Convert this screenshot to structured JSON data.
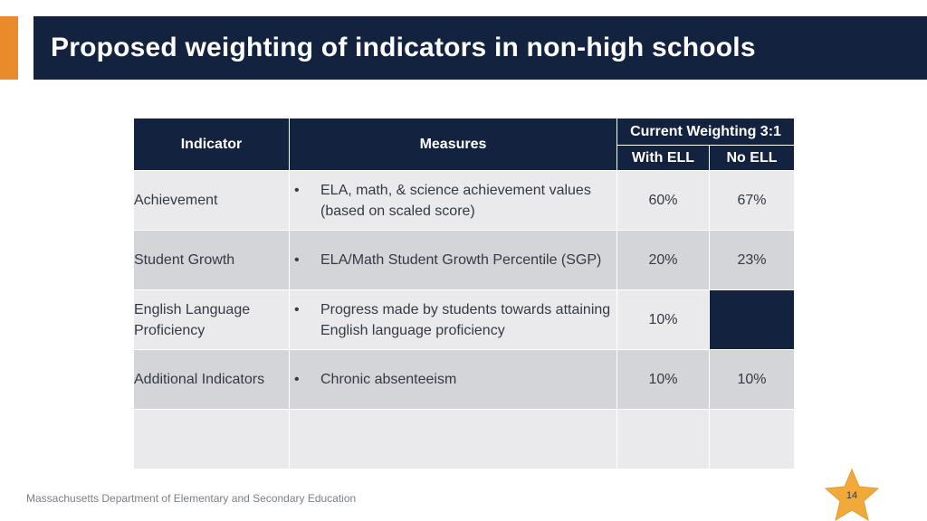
{
  "title": "Proposed weighting of indicators in non-high schools",
  "table": {
    "header": {
      "indicator": "Indicator",
      "measures": "Measures",
      "current_weighting": "Current Weighting 3:1",
      "with_ell": "With ELL",
      "no_ell": "No ELL"
    },
    "rows": [
      {
        "indicator": "Achievement",
        "bullet": "•",
        "measure": "ELA, math, & science achievement values (based on scaled score)",
        "with_ell": "60%",
        "no_ell": "67%"
      },
      {
        "indicator": "Student Growth",
        "bullet": "•",
        "measure": "ELA/Math Student Growth Percentile (SGP)",
        "with_ell": "20%",
        "no_ell": "23%"
      },
      {
        "indicator": "English Language Proficiency",
        "bullet": "•",
        "measure": "Progress made by students towards attaining English language proficiency",
        "with_ell": "10%",
        "no_ell": ""
      },
      {
        "indicator": "Additional Indicators",
        "bullet": "•",
        "measure": "Chronic absenteeism",
        "with_ell": "10%",
        "no_ell": "10%"
      }
    ]
  },
  "footer": {
    "organization": "Massachusetts Department of Elementary and Secondary Education",
    "page_number": "14"
  },
  "colors": {
    "navy": "#13223f",
    "orange_accent": "#ea8b2b",
    "star_fill": "#f2a93b",
    "row_light": "#eaeaec",
    "row_dark": "#d4d5d9"
  }
}
